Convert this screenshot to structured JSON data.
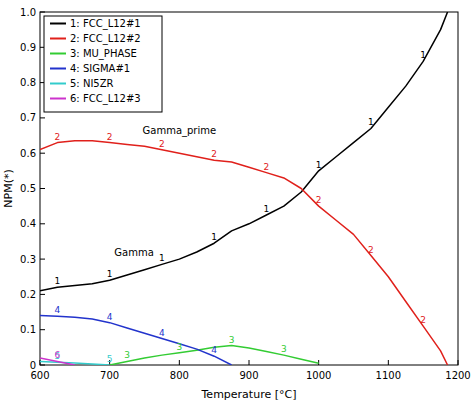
{
  "chart_data": {
    "type": "line",
    "x_label": "Temperature [°C]",
    "y_label": "NPM(*)",
    "x": [
      600,
      625,
      650,
      675,
      700,
      725,
      750,
      775,
      800,
      825,
      850,
      875,
      900,
      925,
      950,
      975,
      1000,
      1025,
      1050,
      1075,
      1100,
      1125,
      1150,
      1175,
      1185
    ],
    "series": [
      {
        "name": "1: FCC_L12#1",
        "color": "#000000",
        "values": [
          0.21,
          0.22,
          0.225,
          0.23,
          0.24,
          0.255,
          0.27,
          0.285,
          0.3,
          0.32,
          0.345,
          0.38,
          0.4,
          0.425,
          0.45,
          0.49,
          0.55,
          0.59,
          0.63,
          0.67,
          0.73,
          0.79,
          0.86,
          0.95,
          1.0
        ]
      },
      {
        "name": "2: FCC_L12#2",
        "color": "#e0201b",
        "values": [
          0.61,
          0.63,
          0.635,
          0.635,
          0.63,
          0.625,
          0.62,
          0.61,
          0.6,
          0.59,
          0.58,
          0.575,
          0.56,
          0.545,
          0.53,
          0.5,
          0.45,
          0.41,
          0.37,
          0.31,
          0.25,
          0.18,
          0.11,
          0.04,
          0.0
        ]
      },
      {
        "name": "3: MU_PHASE",
        "color": "#33cc33",
        "values": [
          null,
          null,
          null,
          null,
          0.0,
          0.01,
          0.02,
          0.028,
          0.035,
          0.042,
          0.05,
          0.055,
          0.048,
          0.038,
          0.028,
          0.016,
          0.005,
          null,
          null,
          null,
          null,
          null,
          null,
          null,
          null
        ]
      },
      {
        "name": "4: SIGMA#1",
        "color": "#2233cc",
        "values": [
          0.14,
          0.138,
          0.135,
          0.13,
          0.12,
          0.105,
          0.09,
          0.075,
          0.06,
          0.045,
          0.025,
          0.0,
          null,
          null,
          null,
          null,
          null,
          null,
          null,
          null,
          null,
          null,
          null,
          null,
          null
        ]
      },
      {
        "name": "5: NI5ZR",
        "color": "#33cccc",
        "values": [
          0.01,
          0.008,
          0.006,
          0.003,
          0.0,
          null,
          null,
          null,
          null,
          null,
          null,
          null,
          null,
          null,
          null,
          null,
          null,
          null,
          null,
          null,
          null,
          null,
          null,
          null,
          null
        ]
      },
      {
        "name": "6: FCC_L12#3",
        "color": "#cc33cc",
        "values": [
          0.02,
          0.01,
          0.0,
          null,
          null,
          null,
          null,
          null,
          null,
          null,
          null,
          null,
          null,
          null,
          null,
          null,
          null,
          null,
          null,
          null,
          null,
          null,
          null,
          null,
          null
        ]
      }
    ],
    "annotations": [
      {
        "text": "Gamma_prime",
        "x": 800,
        "y": 0.655
      },
      {
        "text": "Gamma",
        "x": 735,
        "y": 0.31
      }
    ],
    "xlim": [
      600,
      1200
    ],
    "ylim": [
      0,
      1
    ],
    "xticks": [
      600,
      700,
      800,
      900,
      1000,
      1100,
      1200
    ],
    "yticks": [
      0,
      0.1,
      0.2,
      0.3,
      0.4,
      0.5,
      0.6,
      0.7,
      0.8,
      0.9,
      {
        "value": 1,
        "label": "1.0"
      }
    ],
    "grid": false,
    "legend": "upper left"
  }
}
